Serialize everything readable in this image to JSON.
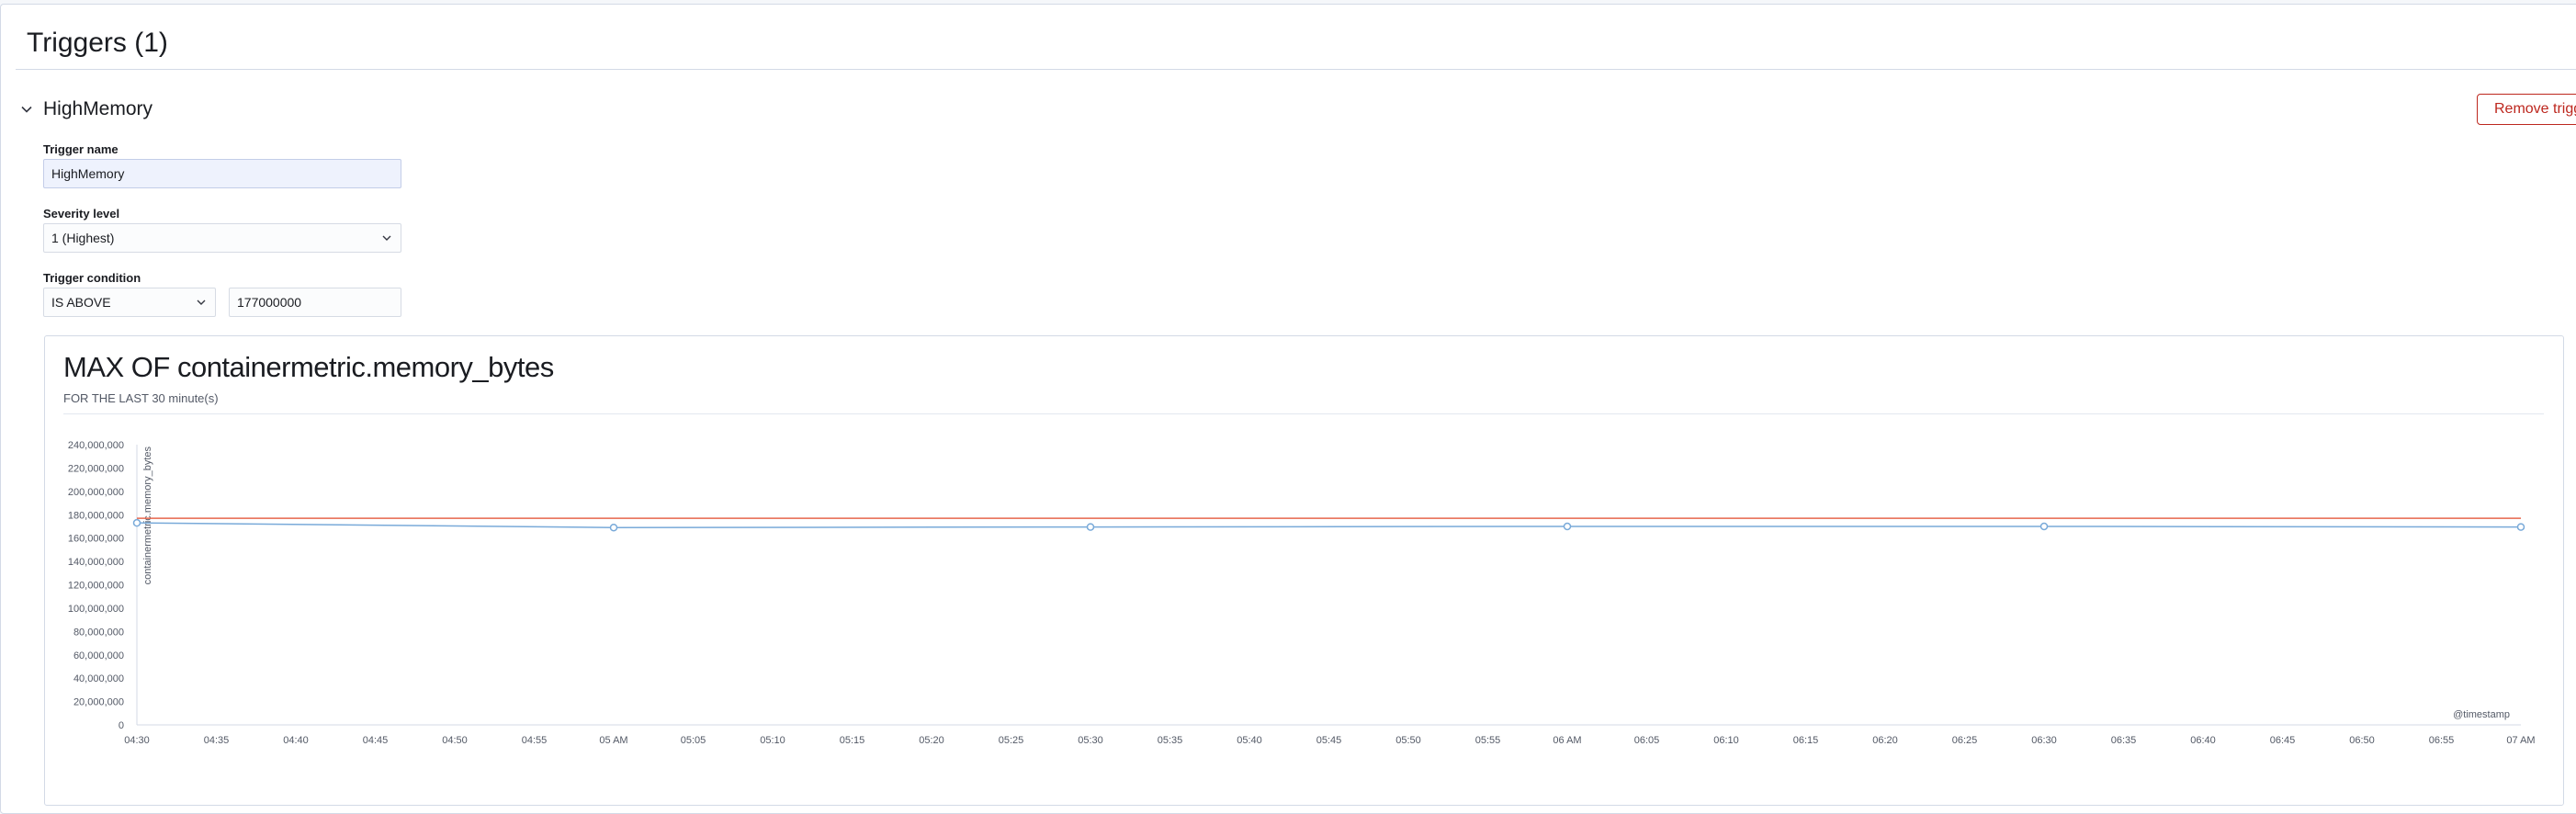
{
  "section": {
    "title": "Triggers (1)"
  },
  "trigger": {
    "name": "HighMemory",
    "remove_label": "Remove trigger",
    "name_label": "Trigger name",
    "name_value": "HighMemory",
    "severity_label": "Severity level",
    "severity_value": "1 (Highest)",
    "condition_label": "Trigger condition",
    "condition_operator": "IS ABOVE",
    "condition_value": "177000000"
  },
  "chart": {
    "title": "MAX OF containermetric.memory_bytes",
    "subtitle": "FOR THE LAST 30 minute(s)"
  },
  "chart_data": {
    "type": "line",
    "ylabel": "containermetric.memory_bytes",
    "xlabel": "@timestamp",
    "ylim": [
      0,
      240000000
    ],
    "y_ticks": [
      "0",
      "20,000,000",
      "40,000,000",
      "60,000,000",
      "80,000,000",
      "100,000,000",
      "120,000,000",
      "140,000,000",
      "160,000,000",
      "180,000,000",
      "200,000,000",
      "220,000,000",
      "240,000,000"
    ],
    "x_ticks": [
      "04:30",
      "04:35",
      "04:40",
      "04:45",
      "04:50",
      "04:55",
      "05 AM",
      "05:05",
      "05:10",
      "05:15",
      "05:20",
      "05:25",
      "05:30",
      "05:35",
      "05:40",
      "05:45",
      "05:50",
      "05:55",
      "06 AM",
      "06:05",
      "06:10",
      "06:15",
      "06:20",
      "06:25",
      "06:30",
      "06:35",
      "06:40",
      "06:45",
      "06:50",
      "06:55",
      "07 AM"
    ],
    "threshold": 177000000,
    "series": [
      {
        "x": [
          "04:30",
          "05 AM",
          "05:30",
          "06 AM",
          "06:30",
          "07 AM"
        ],
        "values": [
          173000000,
          169000000,
          169500000,
          170000000,
          170000000,
          169500000
        ]
      }
    ],
    "colors": {
      "line": "#79aad9",
      "threshold": "#e7664c",
      "point": "#79aad9"
    },
    "grid": false
  }
}
